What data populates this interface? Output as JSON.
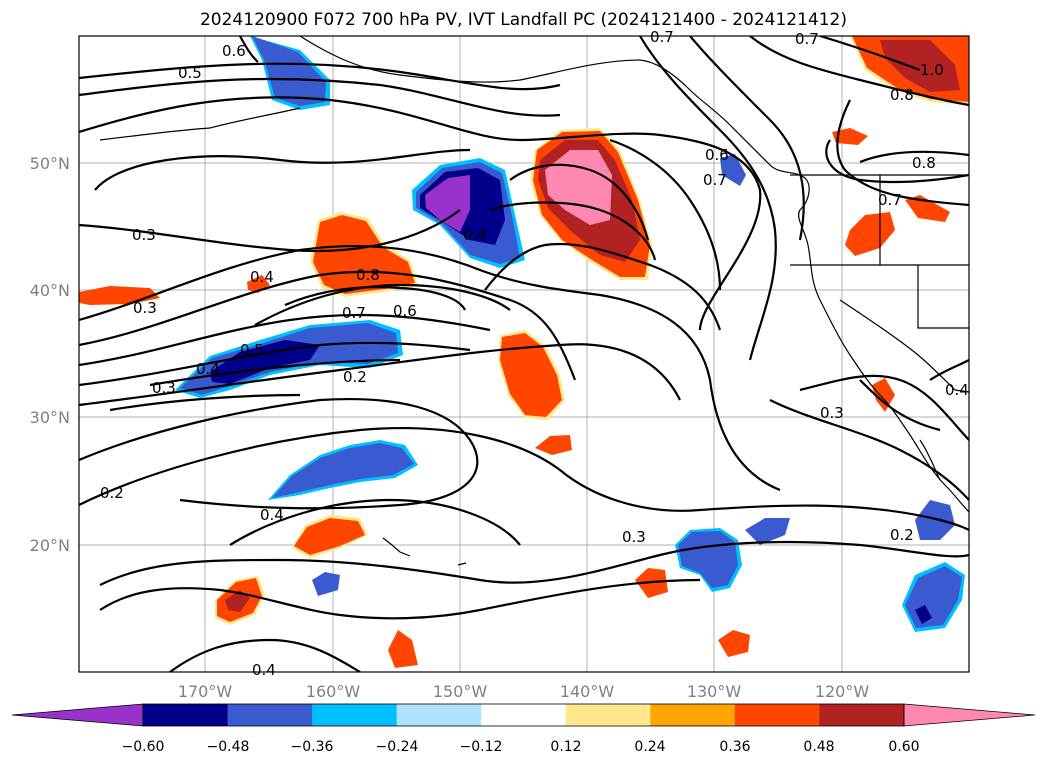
{
  "title": "2024120900 F072 700 hPa PV, IVT Landfall PC (2024121400 - 2024121412)",
  "map": {
    "lat_labels": [
      "50°N",
      "40°N",
      "30°N",
      "20°N"
    ],
    "lon_labels": [
      "170°W",
      "160°W",
      "150°W",
      "140°W",
      "130°W",
      "120°W"
    ],
    "contour_labels": [
      "0.6",
      "0.5",
      "0.3",
      "0.4",
      "0.3",
      "0.8",
      "0.7",
      "0.6",
      "0.5",
      "0.4",
      "0.3",
      "0.2",
      "0.2",
      "0.4",
      "0.4",
      "0.3",
      "0.2",
      "0.3",
      "0.7",
      "0.6",
      "0.7",
      "0.8",
      "0.7",
      "1.0",
      "0.8",
      "0.7",
      "0.4",
      "0.4"
    ]
  },
  "colorbar": {
    "ticks": [
      "−0.60",
      "−0.48",
      "−0.36",
      "−0.24",
      "−0.12",
      "0.12",
      "0.24",
      "0.36",
      "0.48",
      "0.60"
    ],
    "colors": [
      "#9932cc",
      "#00008b",
      "#3a5bd0",
      "#00bfff",
      "#b0e2ff",
      "#ffffff",
      "#ffe88c",
      "#ffa500",
      "#ff4500",
      "#b22222",
      "#ff88b0"
    ]
  }
}
